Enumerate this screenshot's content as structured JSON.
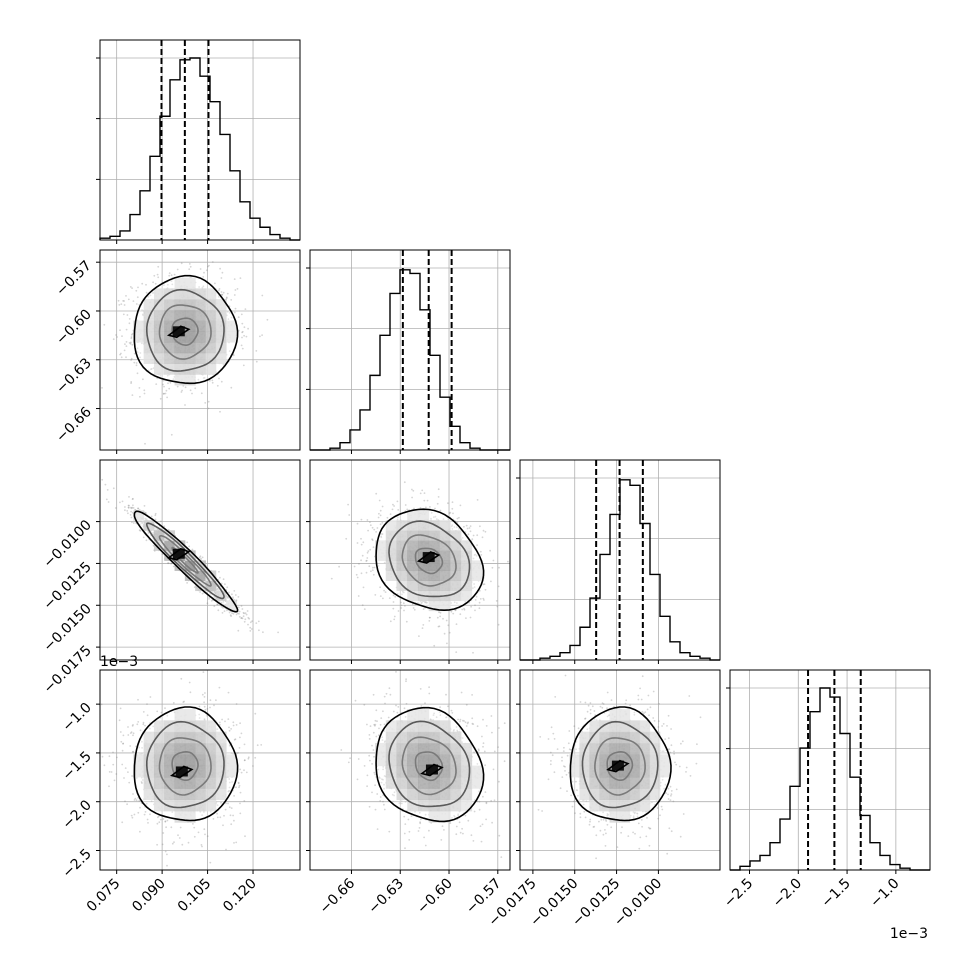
{
  "figure": {
    "background": "#ffffff",
    "text_color": "#000000"
  },
  "chart_data": {
    "type": "corner",
    "parameters": [
      {
        "range": [
          0.0695,
          0.1355
        ],
        "ticks": [
          "0.075",
          "0.090",
          "0.105",
          "0.120"
        ],
        "tick_values": [
          0.075,
          0.09,
          0.105,
          0.12
        ],
        "offset_text": "",
        "median": 0.0975,
        "q16": 0.0898,
        "q84": 0.1053
      },
      {
        "range": [
          -0.6855,
          -0.5625
        ],
        "ticks": [
          "−0.66",
          "−0.63",
          "−0.60",
          "−0.57"
        ],
        "tick_values": [
          -0.66,
          -0.63,
          -0.6,
          -0.57
        ],
        "offset_text": "",
        "median": -0.6125,
        "q16": -0.6284,
        "q84": -0.5984
      },
      {
        "range": [
          -0.01827,
          -0.00632
        ],
        "ticks": [
          "−0.0175",
          "−0.0150",
          "−0.0125",
          "−0.0100"
        ],
        "tick_values": [
          -0.0175,
          -0.015,
          -0.0125,
          -0.01
        ],
        "offset_text": "",
        "median": -0.01232,
        "q16": -0.01372,
        "q84": -0.01093
      },
      {
        "range": [
          -2.7,
          -0.65
        ],
        "ticks": [
          "−2.5",
          "−2.0",
          "−1.5",
          "−1.0"
        ],
        "tick_values": [
          -2.5,
          -2.0,
          -1.5,
          -1.0
        ],
        "offset_text": "1e−3",
        "median": -1.63,
        "q16": -1.9,
        "q84": -1.36
      }
    ],
    "histograms": [
      [
        0.01,
        0.02,
        0.05,
        0.14,
        0.27,
        0.46,
        0.68,
        0.88,
        0.99,
        1.0,
        0.9,
        0.76,
        0.58,
        0.38,
        0.21,
        0.12,
        0.07,
        0.03,
        0.01,
        0.0
      ],
      [
        0.0,
        0.0,
        0.01,
        0.04,
        0.11,
        0.22,
        0.41,
        0.63,
        0.86,
        0.99,
        0.97,
        0.77,
        0.52,
        0.29,
        0.13,
        0.04,
        0.01,
        0.0,
        0.0,
        0.0
      ],
      [
        0.0,
        0.0,
        0.01,
        0.02,
        0.04,
        0.08,
        0.18,
        0.34,
        0.58,
        0.8,
        0.99,
        0.96,
        0.75,
        0.47,
        0.24,
        0.1,
        0.04,
        0.02,
        0.01,
        0.0
      ],
      [
        0.0,
        0.02,
        0.05,
        0.08,
        0.15,
        0.28,
        0.46,
        0.67,
        0.87,
        1.0,
        0.95,
        0.75,
        0.51,
        0.3,
        0.15,
        0.08,
        0.03,
        0.01,
        0.0,
        0.0
      ]
    ],
    "pairs": [
      {
        "row": 1,
        "col": 0,
        "mean_x": 0.0975,
        "mean_y": -0.6125,
        "sx": 0.0085,
        "sy": 0.0165,
        "rho": 0.0,
        "peak_dx": -0.002,
        "peak_dy": 0.0
      },
      {
        "row": 2,
        "col": 0,
        "mean_x": 0.0975,
        "mean_y": -0.01232,
        "sx": 0.0085,
        "sy": 0.0015,
        "rho": -0.96,
        "peak_dx": -0.002,
        "peak_dy": 0.0004
      },
      {
        "row": 2,
        "col": 1,
        "mean_x": -0.6125,
        "mean_y": -0.01232,
        "sx": 0.0165,
        "sy": 0.0015,
        "rho": -0.2,
        "peak_dx": 0.0,
        "peak_dy": 0.0002
      },
      {
        "row": 3,
        "col": 0,
        "mean_x": 0.0975,
        "mean_y": -1.63,
        "sx": 0.0085,
        "sy": 0.29,
        "rho": 0.0,
        "peak_dx": -0.001,
        "peak_dy": -0.06
      },
      {
        "row": 3,
        "col": 1,
        "mean_x": -0.6125,
        "mean_y": -1.63,
        "sx": 0.0165,
        "sy": 0.29,
        "rho": -0.15,
        "peak_dx": 0.002,
        "peak_dy": -0.04
      },
      {
        "row": 3,
        "col": 2,
        "mean_x": -0.01232,
        "mean_y": -1.63,
        "sx": 0.0015,
        "sy": 0.29,
        "rho": 0.0,
        "peak_dx": -0.0001,
        "peak_dy": 0.0
      }
    ],
    "contour_levels": [
      0.5,
      1.0,
      1.5,
      2.0
    ],
    "grid": true,
    "hist_style": "step",
    "quantile_line_style": "dashed",
    "colors": {
      "line": "#000000",
      "grid": "#b0b0b0",
      "scatter": "#888888"
    }
  }
}
